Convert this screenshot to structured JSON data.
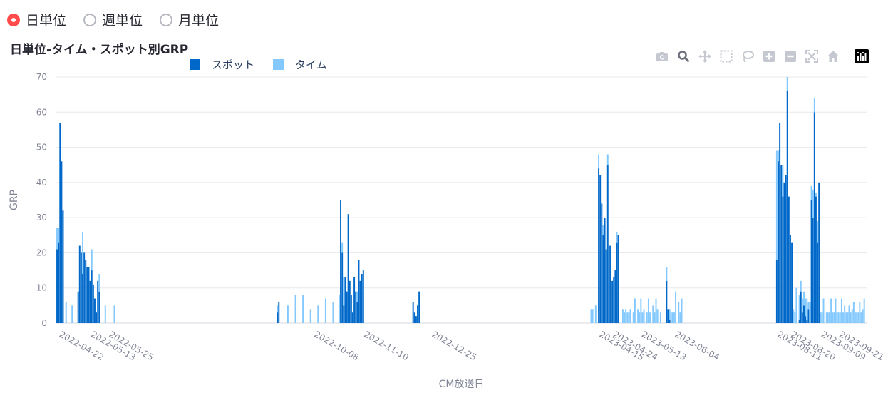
{
  "radio_options": [
    {
      "label": "日単位",
      "selected": true
    },
    {
      "label": "週単位",
      "selected": false
    },
    {
      "label": "月単位",
      "selected": false
    }
  ],
  "chart_title": "日単位-タイム・スポット別GRP",
  "modebar": [
    "camera-icon",
    "zoom-icon",
    "pan-icon",
    "box-select-icon",
    "lasso-icon",
    "zoom-in-icon",
    "zoom-out-icon",
    "autoscale-icon",
    "home-icon",
    "plotly-logo-icon"
  ],
  "colors": {
    "spot": "#0068c9",
    "time": "#83c9ff",
    "grid": "#e5e8ee",
    "axis_text": "#808495"
  },
  "chart_data": {
    "type": "bar",
    "barmode": "stack",
    "title": "日単位-タイム・スポット別GRP",
    "xlabel": "CM放送日",
    "ylabel": "GRP",
    "ylim": [
      0,
      70
    ],
    "y_ticks": [
      0,
      10,
      20,
      30,
      40,
      50,
      60,
      70
    ],
    "x_range": [
      "2022-04-20",
      "2023-10-10"
    ],
    "x_ticks": [
      "2022-04-22",
      "2022-05-13",
      "2022-05-25",
      "2022-10-08",
      "2022-11-10",
      "2022-12-25",
      "2023-04-15",
      "2023-04-24",
      "2023-05-13",
      "2023-06-04",
      "2023-08-11",
      "2023-08-20",
      "2023-09-09",
      "2023-09-21"
    ],
    "legend_position": "top",
    "grid": true,
    "series": [
      {
        "name": "スポット",
        "color": "#0068c9",
        "points": [
          [
            "2022-04-21",
            21
          ],
          [
            "2022-04-22",
            23
          ],
          [
            "2022-04-23",
            57
          ],
          [
            "2022-04-24",
            46
          ],
          [
            "2022-04-25",
            32
          ],
          [
            "2022-05-05",
            9
          ],
          [
            "2022-05-06",
            22
          ],
          [
            "2022-05-07",
            20
          ],
          [
            "2022-05-08",
            14
          ],
          [
            "2022-05-09",
            20
          ],
          [
            "2022-05-10",
            18
          ],
          [
            "2022-05-11",
            16
          ],
          [
            "2022-05-12",
            16
          ],
          [
            "2022-05-13",
            12
          ],
          [
            "2022-05-14",
            15
          ],
          [
            "2022-05-15",
            11
          ],
          [
            "2022-05-16",
            7
          ],
          [
            "2022-05-17",
            3
          ],
          [
            "2022-05-18",
            12
          ],
          [
            "2022-05-19",
            9
          ],
          [
            "2022-09-14",
            3
          ],
          [
            "2022-09-15",
            6
          ],
          [
            "2022-10-26",
            35
          ],
          [
            "2022-10-27",
            20
          ],
          [
            "2022-10-28",
            5
          ],
          [
            "2022-10-29",
            13
          ],
          [
            "2022-10-30",
            9
          ],
          [
            "2022-10-31",
            31
          ],
          [
            "2022-11-01",
            12
          ],
          [
            "2022-11-02",
            8
          ],
          [
            "2022-11-03",
            3
          ],
          [
            "2022-11-04",
            13
          ],
          [
            "2022-11-05",
            9
          ],
          [
            "2022-11-06",
            6
          ],
          [
            "2022-11-07",
            18
          ],
          [
            "2022-11-08",
            12
          ],
          [
            "2022-11-09",
            14
          ],
          [
            "2022-11-10",
            15
          ],
          [
            "2022-12-13",
            6
          ],
          [
            "2022-12-14",
            3
          ],
          [
            "2022-12-15",
            2
          ],
          [
            "2022-12-16",
            5
          ],
          [
            "2022-12-17",
            9
          ],
          [
            "2023-04-15",
            44
          ],
          [
            "2023-04-16",
            42
          ],
          [
            "2023-04-17",
            34
          ],
          [
            "2023-04-18",
            25
          ],
          [
            "2023-04-19",
            30
          ],
          [
            "2023-04-20",
            21
          ],
          [
            "2023-04-21",
            45
          ],
          [
            "2023-04-22",
            22
          ],
          [
            "2023-04-23",
            22
          ],
          [
            "2023-04-24",
            12
          ],
          [
            "2023-04-25",
            13
          ],
          [
            "2023-04-26",
            15
          ],
          [
            "2023-04-27",
            23
          ],
          [
            "2023-04-28",
            25
          ],
          [
            "2023-05-30",
            12
          ],
          [
            "2023-05-31",
            4
          ],
          [
            "2023-06-01",
            1
          ],
          [
            "2023-08-11",
            18
          ],
          [
            "2023-08-12",
            46
          ],
          [
            "2023-08-13",
            57
          ],
          [
            "2023-08-14",
            45
          ],
          [
            "2023-08-15",
            36
          ],
          [
            "2023-08-16",
            40
          ],
          [
            "2023-08-17",
            42
          ],
          [
            "2023-08-18",
            66
          ],
          [
            "2023-08-19",
            36
          ],
          [
            "2023-08-20",
            25
          ],
          [
            "2023-08-21",
            23
          ],
          [
            "2023-08-26",
            1
          ],
          [
            "2023-08-27",
            9
          ],
          [
            "2023-08-28",
            3
          ],
          [
            "2023-08-29",
            5
          ],
          [
            "2023-08-30",
            2
          ],
          [
            "2023-08-31",
            1
          ],
          [
            "2023-09-01",
            4
          ],
          [
            "2023-09-03",
            35
          ],
          [
            "2023-09-04",
            30
          ],
          [
            "2023-09-05",
            60
          ],
          [
            "2023-09-06",
            36
          ],
          [
            "2023-09-07",
            23
          ],
          [
            "2023-09-08",
            40
          ]
        ]
      },
      {
        "name": "タイム",
        "color": "#83c9ff",
        "points": [
          [
            "2022-04-21",
            6
          ],
          [
            "2022-04-22",
            4
          ],
          [
            "2022-04-23",
            0
          ],
          [
            "2022-04-24",
            0
          ],
          [
            "2022-04-25",
            0
          ],
          [
            "2022-04-27",
            6
          ],
          [
            "2022-05-01",
            5
          ],
          [
            "2022-05-06",
            0
          ],
          [
            "2022-05-07",
            0
          ],
          [
            "2022-05-08",
            12
          ],
          [
            "2022-05-10",
            0
          ],
          [
            "2022-05-12",
            0
          ],
          [
            "2022-05-14",
            6
          ],
          [
            "2022-05-16",
            0
          ],
          [
            "2022-05-18",
            0
          ],
          [
            "2022-05-19",
            5
          ],
          [
            "2022-05-23",
            5
          ],
          [
            "2022-05-29",
            5
          ],
          [
            "2022-09-14",
            2
          ],
          [
            "2022-09-21",
            5
          ],
          [
            "2022-09-26",
            8
          ],
          [
            "2022-10-01",
            8
          ],
          [
            "2022-10-06",
            4
          ],
          [
            "2022-10-11",
            5
          ],
          [
            "2022-10-16",
            7
          ],
          [
            "2022-10-21",
            6
          ],
          [
            "2022-10-25",
            8
          ],
          [
            "2022-10-27",
            3
          ],
          [
            "2022-10-28",
            8
          ],
          [
            "2022-11-02",
            0
          ],
          [
            "2022-11-06",
            3
          ],
          [
            "2023-04-10",
            4
          ],
          [
            "2023-04-11",
            4
          ],
          [
            "2023-04-13",
            5
          ],
          [
            "2023-04-15",
            4
          ],
          [
            "2023-04-16",
            0
          ],
          [
            "2023-04-17",
            0
          ],
          [
            "2023-04-18",
            3
          ],
          [
            "2023-04-19",
            0
          ],
          [
            "2023-04-21",
            3
          ],
          [
            "2023-04-23",
            0
          ],
          [
            "2023-04-24",
            0
          ],
          [
            "2023-04-25",
            0
          ],
          [
            "2023-04-26",
            0
          ],
          [
            "2023-04-27",
            3
          ],
          [
            "2023-04-28",
            0
          ],
          [
            "2023-05-01",
            4
          ],
          [
            "2023-05-02",
            3
          ],
          [
            "2023-05-03",
            4
          ],
          [
            "2023-05-04",
            3
          ],
          [
            "2023-05-05",
            3
          ],
          [
            "2023-05-06",
            4
          ],
          [
            "2023-05-08",
            3
          ],
          [
            "2023-05-09",
            7
          ],
          [
            "2023-05-11",
            4
          ],
          [
            "2023-05-12",
            3
          ],
          [
            "2023-05-13",
            7
          ],
          [
            "2023-05-14",
            3
          ],
          [
            "2023-05-15",
            4
          ],
          [
            "2023-05-17",
            3
          ],
          [
            "2023-05-18",
            7
          ],
          [
            "2023-05-19",
            3
          ],
          [
            "2023-05-21",
            5
          ],
          [
            "2023-05-22",
            3
          ],
          [
            "2023-05-23",
            7
          ],
          [
            "2023-05-24",
            4
          ],
          [
            "2023-05-26",
            3
          ],
          [
            "2023-05-30",
            4
          ],
          [
            "2023-05-31",
            0
          ],
          [
            "2023-06-01",
            3
          ],
          [
            "2023-06-02",
            3
          ],
          [
            "2023-06-03",
            3
          ],
          [
            "2023-06-04",
            3
          ],
          [
            "2023-06-05",
            9
          ],
          [
            "2023-06-07",
            6
          ],
          [
            "2023-06-08",
            3
          ],
          [
            "2023-06-09",
            7
          ],
          [
            "2023-08-11",
            31
          ],
          [
            "2023-08-12",
            3
          ],
          [
            "2023-08-13",
            0
          ],
          [
            "2023-08-14",
            0
          ],
          [
            "2023-08-15",
            9
          ],
          [
            "2023-08-16",
            0
          ],
          [
            "2023-08-17",
            0
          ],
          [
            "2023-08-18",
            4
          ],
          [
            "2023-08-19",
            0
          ],
          [
            "2023-08-20",
            0
          ],
          [
            "2023-08-22",
            4
          ],
          [
            "2023-08-23",
            3
          ],
          [
            "2023-08-24",
            10
          ],
          [
            "2023-08-26",
            7
          ],
          [
            "2023-08-27",
            3
          ],
          [
            "2023-08-28",
            4
          ],
          [
            "2023-08-29",
            4
          ],
          [
            "2023-08-30",
            5
          ],
          [
            "2023-08-31",
            6
          ],
          [
            "2023-09-01",
            2
          ],
          [
            "2023-09-02",
            6
          ],
          [
            "2023-09-03",
            4
          ],
          [
            "2023-09-04",
            8
          ],
          [
            "2023-09-05",
            4
          ],
          [
            "2023-09-06",
            1
          ],
          [
            "2023-09-07",
            6
          ],
          [
            "2023-09-08",
            0
          ],
          [
            "2023-09-09",
            3
          ],
          [
            "2023-09-10",
            3
          ],
          [
            "2023-09-11",
            7
          ],
          [
            "2023-09-13",
            3
          ],
          [
            "2023-09-14",
            3
          ],
          [
            "2023-09-15",
            3
          ],
          [
            "2023-09-16",
            7
          ],
          [
            "2023-09-17",
            3
          ],
          [
            "2023-09-18",
            3
          ],
          [
            "2023-09-19",
            7
          ],
          [
            "2023-09-20",
            3
          ],
          [
            "2023-09-21",
            3
          ],
          [
            "2023-09-22",
            3
          ],
          [
            "2023-09-23",
            7
          ],
          [
            "2023-09-24",
            3
          ],
          [
            "2023-09-25",
            5
          ],
          [
            "2023-09-26",
            3
          ],
          [
            "2023-09-27",
            3
          ],
          [
            "2023-09-28",
            5
          ],
          [
            "2023-09-29",
            3
          ],
          [
            "2023-09-30",
            4
          ],
          [
            "2023-10-01",
            6
          ],
          [
            "2023-10-02",
            3
          ],
          [
            "2023-10-03",
            3
          ],
          [
            "2023-10-04",
            3
          ],
          [
            "2023-10-05",
            6
          ],
          [
            "2023-10-06",
            3
          ],
          [
            "2023-10-07",
            4
          ],
          [
            "2023-10-08",
            7
          ]
        ]
      }
    ]
  }
}
